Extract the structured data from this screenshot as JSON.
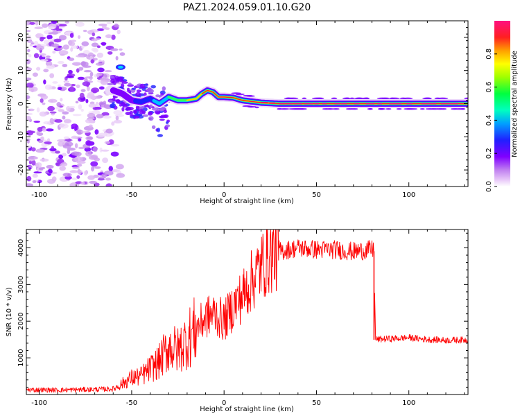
{
  "figure": {
    "title": "PAZ1.2024.059.01.10.G20"
  },
  "chart_data": [
    {
      "type": "heatmap",
      "xlabel": "Height of straight line (km)",
      "ylabel": "Frequency (Hz)",
      "xlim": [
        -107,
        132
      ],
      "ylim": [
        -25,
        25
      ],
      "xticks": [
        -100,
        -50,
        0,
        50,
        100
      ],
      "yticks": [
        -20,
        -10,
        0,
        10,
        20
      ],
      "colorbar": {
        "label": "Normalized spectral amplitude",
        "range": [
          0,
          1
        ],
        "ticks": [
          0.0,
          0.2,
          0.4,
          0.6,
          0.8
        ],
        "tick_labels": [
          "0.0",
          "0.2",
          "0.4",
          "0.6",
          "0.8"
        ],
        "colormap": [
          "#ffffff",
          "#e8c8f8",
          "#8000ff",
          "#2020ff",
          "#00c0ff",
          "#00ff60",
          "#c0ff00",
          "#ffc000",
          "#ff2020",
          "#ff1080"
        ]
      },
      "ridge": {
        "x": [
          -60,
          -55,
          -50,
          -45,
          -40,
          -35,
          -30,
          -25,
          -20,
          -15,
          -12,
          -9,
          -6,
          -3,
          0,
          5,
          10,
          20,
          30,
          50,
          80,
          110,
          132
        ],
        "y": [
          4,
          3,
          1,
          0.5,
          1.5,
          0,
          2,
          1,
          1,
          1.5,
          3,
          4,
          3.5,
          2,
          2,
          1.8,
          1,
          0.3,
          0,
          0,
          0,
          0,
          0
        ]
      }
    },
    {
      "type": "line",
      "xlabel": "Height of straight line (km)",
      "ylabel": "SNR (10 * v/v)",
      "xlim": [
        -107,
        132
      ],
      "ylim": [
        0,
        4500
      ],
      "xticks": [
        -100,
        -50,
        0,
        50,
        100
      ],
      "yticks": [
        1000,
        2000,
        3000,
        4000
      ],
      "line_color": "#ff0000",
      "series": [
        {
          "x": [
            -107,
            -90,
            -70,
            -60,
            -55,
            -50,
            -45,
            -40,
            -35,
            -30,
            -25,
            -20,
            -15,
            -10,
            -5,
            0,
            5,
            10,
            15,
            20,
            25,
            30,
            40,
            50,
            60,
            70,
            80,
            81,
            82,
            90,
            100,
            110,
            120,
            132
          ],
          "y": [
            130,
            120,
            140,
            150,
            300,
            450,
            500,
            700,
            900,
            1300,
            1200,
            1500,
            1800,
            2100,
            2200,
            2000,
            2400,
            2700,
            3100,
            3500,
            3800,
            3900,
            4000,
            3950,
            3950,
            3900,
            3950,
            3950,
            1500,
            1520,
            1550,
            1500,
            1480,
            1490
          ]
        }
      ]
    }
  ]
}
